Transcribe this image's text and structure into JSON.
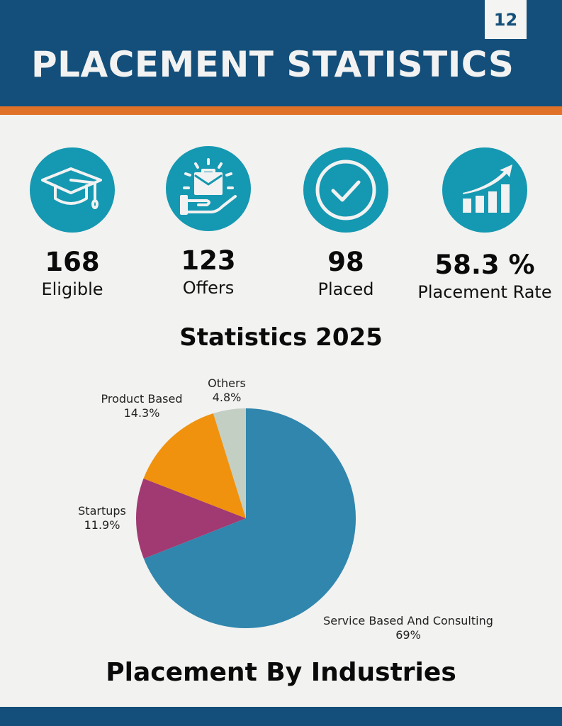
{
  "header": {
    "title": "PLACEMENT STATISTICS",
    "page_number": "12",
    "colors": {
      "header_bg": "#134f7a",
      "accent_bar": "#e07128",
      "icon_circle": "#1598b1"
    }
  },
  "stats": [
    {
      "icon": "graduation-cap-icon",
      "value": "168",
      "label": "Eligible"
    },
    {
      "icon": "briefcase-offer-icon",
      "value": "123",
      "label": "Offers"
    },
    {
      "icon": "check-circle-icon",
      "value": "98",
      "label": "Placed"
    },
    {
      "icon": "growth-chart-icon",
      "value": "58.3 %",
      "label": "Placement Rate"
    }
  ],
  "section_title": "Statistics 2025",
  "chart_caption": "Placement By Industries",
  "pie_labels": [
    {
      "name": "Service Based And Consulting",
      "pct": "69%"
    },
    {
      "name": "Startups",
      "pct": "11.9%"
    },
    {
      "name": "Product Based",
      "pct": "14.3%"
    },
    {
      "name": "Others",
      "pct": "4.8%"
    }
  ],
  "chart_data": {
    "type": "pie",
    "title": "Placement By Industries",
    "categories": [
      "Service Based And Consulting",
      "Startups",
      "Product Based",
      "Others"
    ],
    "values": [
      69,
      11.9,
      14.3,
      4.8
    ],
    "colors": [
      "#3086ad",
      "#a13a72",
      "#f0920e",
      "#c4cfc3"
    ],
    "start_angle": "12 o'clock, clockwise",
    "legend_position": "labels outside slices"
  }
}
